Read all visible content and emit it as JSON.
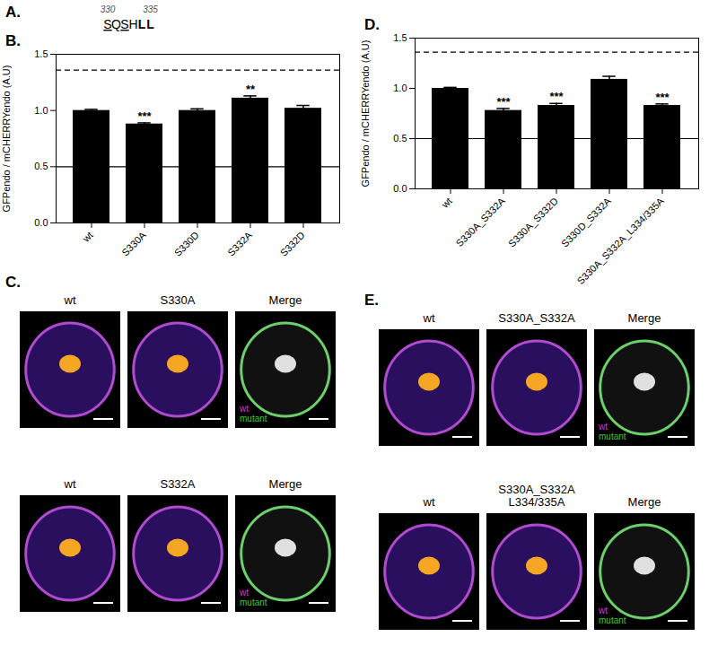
{
  "panels": {
    "A": {
      "label": "A.",
      "positions": [
        330,
        335
      ],
      "residues": [
        {
          "text": "S",
          "style": "underline"
        },
        {
          "text": "Q"
        },
        {
          "text": "S",
          "style": "underline"
        },
        {
          "text": "H"
        },
        {
          "text": "L",
          "style": "bold"
        },
        {
          "text": "L",
          "style": "bold"
        }
      ]
    },
    "C": {
      "label": "C.",
      "rows": [
        {
          "columns": [
            [
              "wt"
            ],
            [
              "S330A"
            ],
            [
              "Merge"
            ]
          ]
        },
        {
          "columns": [
            [
              "wt"
            ],
            [
              "S332A"
            ],
            [
              "Merge"
            ]
          ]
        }
      ],
      "merge_legend": [
        {
          "name": "wt",
          "color": "#d23cd2"
        },
        {
          "name": "mutant",
          "color": "#3cc83c"
        }
      ]
    },
    "E": {
      "label": "E.",
      "rows": [
        {
          "columns": [
            [
              "wt"
            ],
            [
              "S330A_S332A"
            ],
            [
              "Merge"
            ]
          ]
        },
        {
          "columns": [
            [
              "wt"
            ],
            [
              "S330A_S332A",
              "L334/335A"
            ],
            [
              "Merge"
            ]
          ]
        }
      ],
      "merge_legend": [
        {
          "name": "wt",
          "color": "#d23cd2"
        },
        {
          "name": "mutant",
          "color": "#3cc83c"
        }
      ]
    }
  },
  "chart_data": [
    {
      "type": "bar",
      "panel": "B.",
      "categories": [
        "wt",
        "S330A",
        "S330D",
        "S332A",
        "S332D"
      ],
      "values": [
        1.0,
        0.88,
        1.0,
        1.11,
        1.02
      ],
      "errors": [
        0.01,
        0.01,
        0.015,
        0.02,
        0.025
      ],
      "significance": [
        null,
        "***",
        null,
        "**",
        null
      ],
      "color": "#000000",
      "ylabel": "GFPendo / mCHERRYendo (A.U)",
      "ylim": [
        0,
        1.5
      ],
      "yticks": [
        {
          "value": 0,
          "label": "0.0"
        },
        {
          "value": 0.5,
          "label": "0.5"
        },
        {
          "value": 1,
          "label": "1.0"
        },
        {
          "value": 1.5,
          "label": "1.5"
        }
      ],
      "reference_lines": [
        {
          "y": 1.36,
          "line_style": "dashed"
        },
        {
          "y": 0.5,
          "line_style": "solid"
        }
      ]
    },
    {
      "type": "bar",
      "panel": "D.",
      "categories": [
        "wt",
        "S330A_S332A",
        "S330A_S332D",
        "S330D_S332A",
        "S330A_S332A_L334/335A"
      ],
      "values": [
        1.0,
        0.78,
        0.83,
        1.09,
        0.83
      ],
      "errors": [
        0.01,
        0.02,
        0.02,
        0.03,
        0.015
      ],
      "significance": [
        null,
        "***",
        "***",
        null,
        "***"
      ],
      "color": "#000000",
      "ylabel": "GFPendo / mCHERRYendo (A.U)",
      "ylim": [
        0,
        1.5
      ],
      "yticks": [
        {
          "value": 0,
          "label": "0.0"
        },
        {
          "value": 0.5,
          "label": "0.5"
        },
        {
          "value": 1,
          "label": "1.0"
        },
        {
          "value": 1.5,
          "label": "1.5"
        }
      ],
      "reference_lines": [
        {
          "y": 1.36,
          "line_style": "dashed"
        },
        {
          "y": 0.5,
          "line_style": "solid"
        }
      ]
    }
  ]
}
